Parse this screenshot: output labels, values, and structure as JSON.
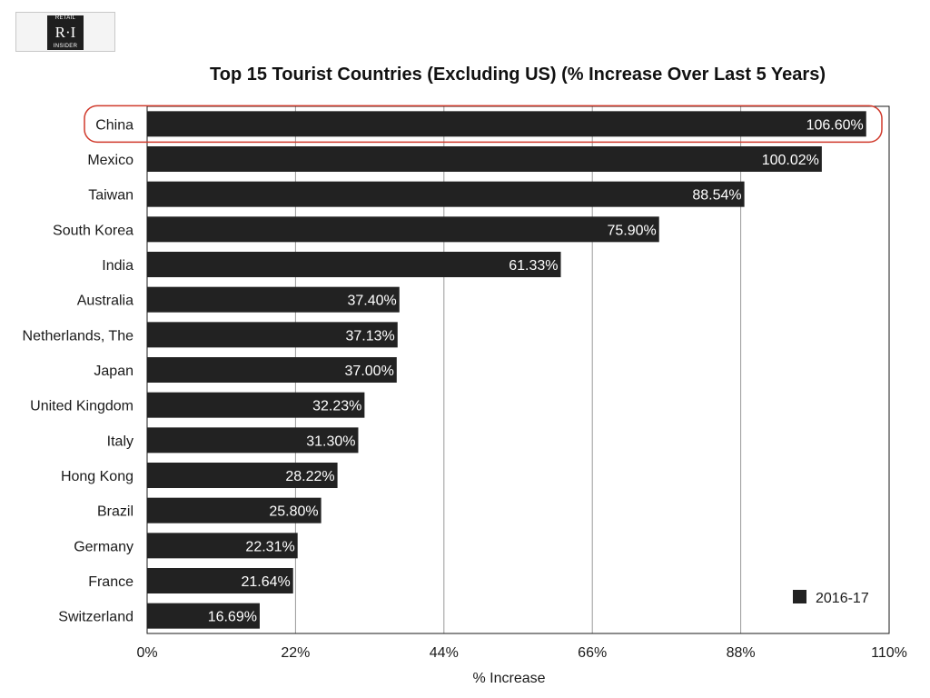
{
  "logo": {
    "top": "RETAIL",
    "main": "R·I",
    "bottom": "INSIDER"
  },
  "chart_data": {
    "type": "bar",
    "orientation": "horizontal",
    "title": "Top 15 Tourist Countries (Excluding US) (% Increase Over Last 5 Years)",
    "xlabel": "% Increase",
    "ylabel": "",
    "xlim": [
      0,
      110
    ],
    "xticks": [
      0,
      22,
      44,
      66,
      88,
      110
    ],
    "xtick_labels": [
      "0%",
      "22%",
      "44%",
      "66%",
      "88%",
      "110%"
    ],
    "grid": "vertical",
    "legend_position": "bottom-right",
    "highlighted_category": "China",
    "colors": {
      "bar": "#222222",
      "highlight": "#d0392b",
      "grid": "#999999"
    },
    "categories": [
      "China",
      "Mexico",
      "Taiwan",
      "South Korea",
      "India",
      "Australia",
      "Netherlands, The",
      "Japan",
      "United Kingdom",
      "Italy",
      "Hong Kong",
      "Brazil",
      "Germany",
      "France",
      "Switzerland"
    ],
    "series": [
      {
        "name": "2016-17",
        "values": [
          106.6,
          100.02,
          88.54,
          75.9,
          61.33,
          37.4,
          37.13,
          37.0,
          32.23,
          31.3,
          28.22,
          25.8,
          22.31,
          21.64,
          16.69
        ],
        "labels": [
          "106.60%",
          "100.02%",
          "88.54%",
          "75.90%",
          "61.33%",
          "37.40%",
          "37.13%",
          "37.00%",
          "32.23%",
          "31.30%",
          "28.22%",
          "25.80%",
          "22.31%",
          "21.64%",
          "16.69%"
        ]
      }
    ]
  }
}
